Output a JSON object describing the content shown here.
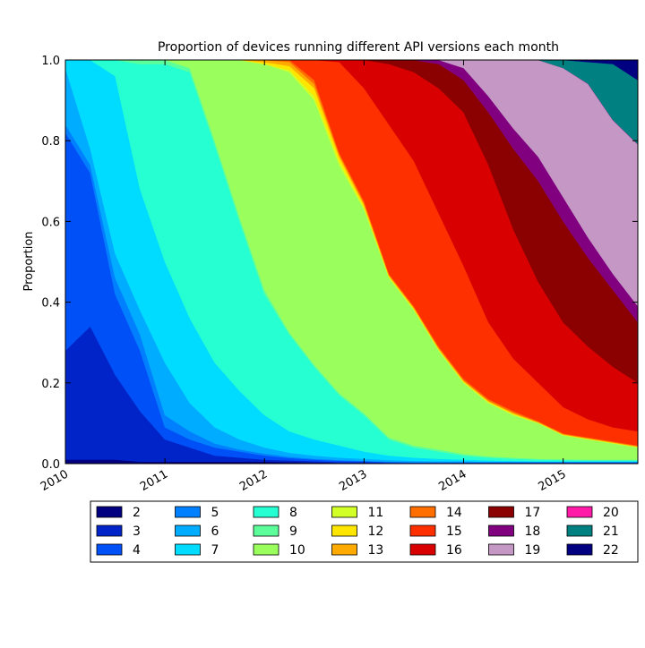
{
  "chart_data": {
    "type": "stacked_area",
    "title": "Proportion of devices running different API versions each month",
    "y_label": "Proportion",
    "x": [
      2010,
      2010.25,
      2010.5,
      2010.75,
      2011,
      2011.25,
      2011.5,
      2011.75,
      2012,
      2012.25,
      2012.5,
      2012.75,
      2013,
      2013.25,
      2013.5,
      2013.75,
      2014,
      2014.25,
      2014.5,
      2014.75,
      2015,
      2015.25,
      2015.5,
      2015.75
    ],
    "xlim": [
      2010,
      2015.75
    ],
    "xticks": [
      2010,
      2011,
      2012,
      2013,
      2014,
      2015
    ],
    "ylim": [
      0,
      1
    ],
    "yticks": [
      {
        "value": 0,
        "label": "0.0"
      },
      0.2,
      0.4,
      0.6,
      0.8,
      {
        "value": 1,
        "label": "1.0"
      }
    ],
    "series": [
      {
        "name": "2",
        "color": "#000080",
        "values": [
          0.01,
          0.01,
          0.01,
          0.005,
          0.005,
          0.005,
          0.005,
          0.005,
          0.005,
          0.004,
          0.003,
          0.002,
          0.002,
          0.001,
          0.001,
          0.001,
          0.001,
          0.001,
          0.001,
          0.001,
          0.001,
          0.001,
          0.001,
          0.001
        ]
      },
      {
        "name": "3",
        "color": "#0024c8",
        "values": [
          0.27,
          0.33,
          0.21,
          0.125,
          0.055,
          0.035,
          0.015,
          0.01,
          0.005,
          0.004,
          0.003,
          0.002,
          0.002,
          0.001,
          0.001,
          0.001,
          0.001,
          0.001,
          0.001,
          0.001,
          0.001,
          0.001,
          0.001,
          0.001
        ]
      },
      {
        "name": "4",
        "color": "#0050f8",
        "values": [
          0.54,
          0.38,
          0.2,
          0.15,
          0.03,
          0.02,
          0.02,
          0.015,
          0.01,
          0.006,
          0.004,
          0.003,
          0.002,
          0.002,
          0.001,
          0.001,
          0.001,
          0.001,
          0.001,
          0.001,
          0.001,
          0.001,
          0.001,
          0.001
        ]
      },
      {
        "name": "5",
        "color": "#0080ff",
        "values": [
          0.02,
          0.02,
          0.04,
          0.04,
          0.03,
          0.02,
          0.01,
          0.005,
          0.005,
          0.003,
          0.002,
          0.002,
          0.001,
          0.001,
          0.001,
          0.001,
          0.001,
          0.001,
          0.001,
          0.001,
          0.001,
          0.001,
          0.001,
          0.001
        ]
      },
      {
        "name": "6",
        "color": "#00acff",
        "values": [
          0.14,
          0.04,
          0.06,
          0.06,
          0.13,
          0.07,
          0.04,
          0.025,
          0.015,
          0.01,
          0.008,
          0.006,
          0.005,
          0.004,
          0.003,
          0.002,
          0.002,
          0.001,
          0.001,
          0.001,
          0.001,
          0.001,
          0.001,
          0.001
        ]
      },
      {
        "name": "7",
        "color": "#00dcff",
        "values": [
          0.02,
          0.22,
          0.44,
          0.3,
          0.25,
          0.21,
          0.16,
          0.12,
          0.08,
          0.053,
          0.04,
          0.03,
          0.018,
          0.011,
          0.008,
          0.006,
          0.004,
          0.003,
          0.002,
          0.001,
          0.001,
          0.001,
          0.001,
          0.001
        ]
      },
      {
        "name": "8",
        "color": "#26ffd1",
        "values": [
          0,
          0,
          0.04,
          0.31,
          0.49,
          0.61,
          0.54,
          0.42,
          0.3,
          0.24,
          0.18,
          0.125,
          0.09,
          0.04,
          0.025,
          0.018,
          0.01,
          0.007,
          0.005,
          0.004,
          0.003,
          0.002,
          0.002,
          0.002
        ]
      },
      {
        "name": "9",
        "color": "#5dff9a",
        "values": [
          0,
          0,
          0,
          0.01,
          0.01,
          0.01,
          0.01,
          0.01,
          0.01,
          0.005,
          0.005,
          0.005,
          0.005,
          0.005,
          0.005,
          0.005,
          0.004,
          0.003,
          0.003,
          0.002,
          0.002,
          0.002,
          0.002,
          0.002
        ]
      },
      {
        "name": "10",
        "color": "#9aff5d",
        "values": [
          0,
          0,
          0,
          0,
          0,
          0.02,
          0.2,
          0.39,
          0.56,
          0.645,
          0.655,
          0.565,
          0.505,
          0.395,
          0.335,
          0.245,
          0.176,
          0.132,
          0.105,
          0.088,
          0.059,
          0.05,
          0.04,
          0.03
        ]
      },
      {
        "name": "11",
        "color": "#d1ff26",
        "values": [
          0,
          0,
          0,
          0,
          0,
          0,
          0,
          0,
          0,
          0.005,
          0.01,
          0.01,
          0.005,
          0.003,
          0.003,
          0.002,
          0.002,
          0.002,
          0.002,
          0.001,
          0.001,
          0.001,
          0.001,
          0.001
        ]
      },
      {
        "name": "12",
        "color": "#ffe600",
        "values": [
          0,
          0,
          0,
          0,
          0,
          0,
          0,
          0,
          0.005,
          0.01,
          0.02,
          0.01,
          0.005,
          0.002,
          0.002,
          0.002,
          0.002,
          0.002,
          0.002,
          0.001,
          0.001,
          0.001,
          0.001,
          0.001
        ]
      },
      {
        "name": "13",
        "color": "#ffaa00",
        "values": [
          0,
          0,
          0,
          0,
          0,
          0,
          0,
          0,
          0.005,
          0.01,
          0.01,
          0.005,
          0.005,
          0.002,
          0.002,
          0.002,
          0.002,
          0.002,
          0.002,
          0.001,
          0.001,
          0.001,
          0.001,
          0.001
        ]
      },
      {
        "name": "14",
        "color": "#ff6f00",
        "values": [
          0,
          0,
          0,
          0,
          0,
          0,
          0,
          0,
          0,
          0.005,
          0.01,
          0.005,
          0.005,
          0.003,
          0.003,
          0.004,
          0.004,
          0.004,
          0.004,
          0.002,
          0.002,
          0.002,
          0.002,
          0.002
        ]
      },
      {
        "name": "15",
        "color": "#ff3000",
        "values": [
          0,
          0,
          0,
          0,
          0,
          0,
          0,
          0,
          0,
          0,
          0.05,
          0.225,
          0.28,
          0.37,
          0.36,
          0.33,
          0.28,
          0.19,
          0.13,
          0.095,
          0.065,
          0.045,
          0.035,
          0.035
        ]
      },
      {
        "name": "16",
        "color": "#d80000",
        "values": [
          0,
          0,
          0,
          0,
          0,
          0,
          0,
          0,
          0,
          0,
          0,
          0.005,
          0.07,
          0.15,
          0.22,
          0.31,
          0.38,
          0.39,
          0.32,
          0.25,
          0.21,
          0.18,
          0.15,
          0.12
        ]
      },
      {
        "name": "17",
        "color": "#8b0000",
        "values": [
          0,
          0,
          0,
          0,
          0,
          0,
          0,
          0,
          0,
          0,
          0,
          0,
          0,
          0.01,
          0.03,
          0.06,
          0.08,
          0.13,
          0.2,
          0.25,
          0.25,
          0.22,
          0.19,
          0.15
        ]
      },
      {
        "name": "18",
        "color": "#800080",
        "values": [
          0,
          0,
          0,
          0,
          0,
          0,
          0,
          0,
          0,
          0,
          0,
          0,
          0,
          0,
          0,
          0.01,
          0.03,
          0.04,
          0.05,
          0.06,
          0.06,
          0.05,
          0.04,
          0.04
        ]
      },
      {
        "name": "19",
        "color": "#c497c4",
        "values": [
          0,
          0,
          0,
          0,
          0,
          0,
          0,
          0,
          0,
          0,
          0,
          0,
          0,
          0,
          0,
          0,
          0.02,
          0.09,
          0.17,
          0.24,
          0.32,
          0.38,
          0.38,
          0.4
        ]
      },
      {
        "name": "20",
        "color": "#ff1aa8",
        "values": [
          0,
          0,
          0,
          0,
          0,
          0,
          0,
          0,
          0,
          0,
          0,
          0,
          0,
          0,
          0,
          0,
          0,
          0,
          0,
          0,
          0,
          0.001,
          0.001,
          0.001
        ]
      },
      {
        "name": "21",
        "color": "#008080",
        "values": [
          0,
          0,
          0,
          0,
          0,
          0,
          0,
          0,
          0,
          0,
          0,
          0,
          0,
          0,
          0,
          0,
          0,
          0,
          0,
          0,
          0.02,
          0.054,
          0.139,
          0.159
        ]
      },
      {
        "name": "22",
        "color": "#000080",
        "values": [
          0,
          0,
          0,
          0,
          0,
          0,
          0,
          0,
          0,
          0,
          0,
          0,
          0,
          0,
          0,
          0,
          0,
          0,
          0,
          0,
          0,
          0.005,
          0.01,
          0.05
        ]
      }
    ]
  }
}
